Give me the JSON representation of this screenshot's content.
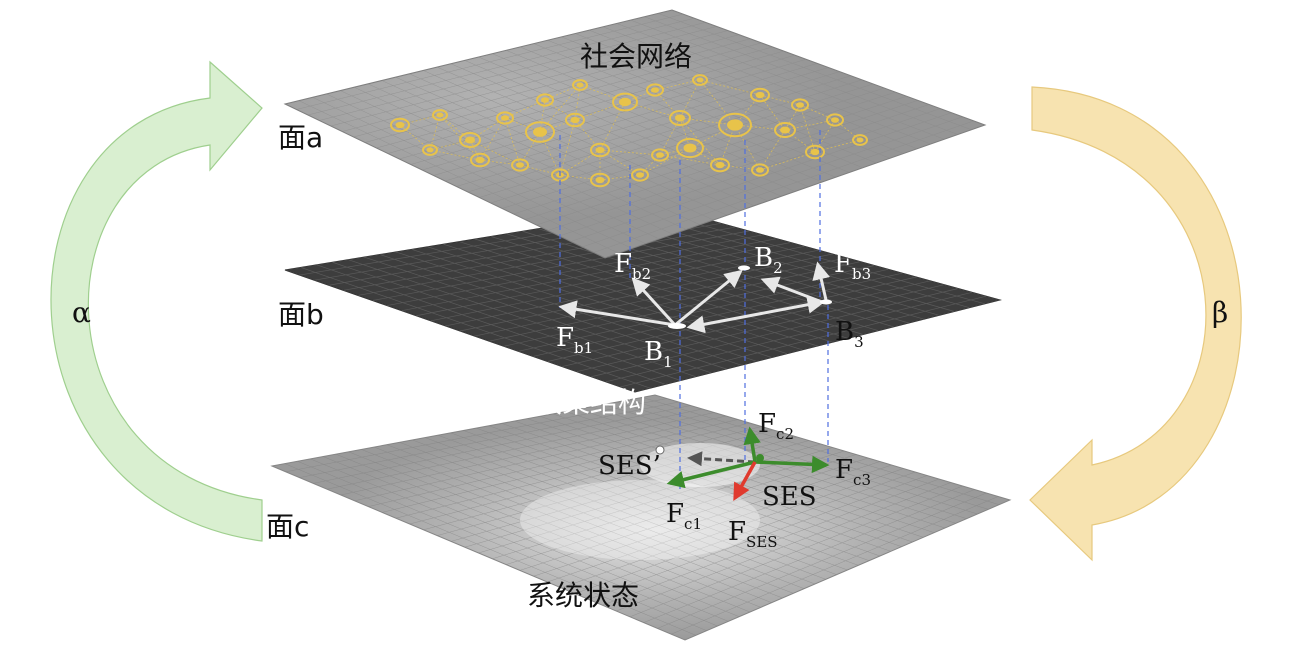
{
  "planes": {
    "a": {
      "side_label": "面a",
      "title": "社会网络"
    },
    "b": {
      "side_label": "面b",
      "title": "政策结构"
    },
    "c": {
      "side_label": "面c",
      "title": "系统状态"
    }
  },
  "cycle": {
    "left_symbol": "α",
    "right_symbol": "β"
  },
  "plane_b_labels": {
    "b1": "B",
    "b1_sub": "1",
    "b2": "B",
    "b2_sub": "2",
    "b3": "B",
    "b3_sub": "3",
    "fb1": "F",
    "fb1_sub": "b1",
    "fb2": "F",
    "fb2_sub": "b2",
    "fb3": "F",
    "fb3_sub": "b3"
  },
  "plane_c_labels": {
    "ses_prime": "SES’",
    "ses": "SES",
    "fc1": "F",
    "fc1_sub": "c1",
    "fc2": "F",
    "fc2_sub": "c2",
    "fc3": "F",
    "fc3_sub": "c3",
    "fses": "F",
    "fses_sub": "SES"
  },
  "colors": {
    "alpha_arrow": "#d9efd0",
    "beta_arrow": "#f7e3b0",
    "plane_a": "#9a9a9a",
    "plane_b": "#3d3d3d",
    "plane_c": "#9b9b9b",
    "network": "#e8c34a",
    "force_green": "#3c8c2c",
    "force_red": "#e03a2e"
  }
}
